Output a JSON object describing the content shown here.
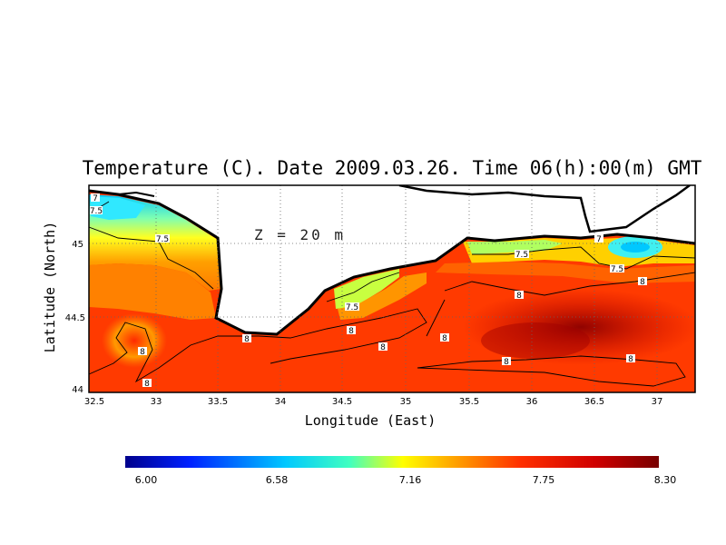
{
  "chart_data": {
    "type": "heatmap",
    "title": "Temperature (C). Date 2009.03.26. Time 06(h):00(m) GMT",
    "xlabel": "Longitude (East)",
    "ylabel": "Latitude (North)",
    "annotation": "Z = 20 m",
    "xlim": [
      32.5,
      37.3
    ],
    "ylim": [
      44.0,
      45.37
    ],
    "x_ticks": [
      "32.5",
      "33",
      "33.5",
      "34",
      "34.5",
      "35",
      "35.5",
      "36",
      "36.5",
      "37"
    ],
    "y_ticks": [
      "44",
      "44.5",
      "45"
    ],
    "grid": true,
    "contour_labels": [
      "7",
      "7.5",
      "7.5",
      "7.5",
      "8",
      "8",
      "8",
      "8",
      "8",
      "8",
      "8",
      "8",
      "8",
      "7",
      "7.5",
      "7.5",
      "8"
    ],
    "colorbar": {
      "min": 6.0,
      "max": 8.3,
      "ticks": [
        "6.00",
        "6.58",
        "7.16",
        "7.75",
        "8.30"
      ]
    },
    "colors": {
      "cold": "#00008c",
      "cool": "#00c8ff",
      "mid": "#ffff00",
      "warm": "#ff8c00",
      "hot": "#ff1e00",
      "max": "#780000",
      "land": "#ffffff",
      "coast": "#000000"
    }
  }
}
